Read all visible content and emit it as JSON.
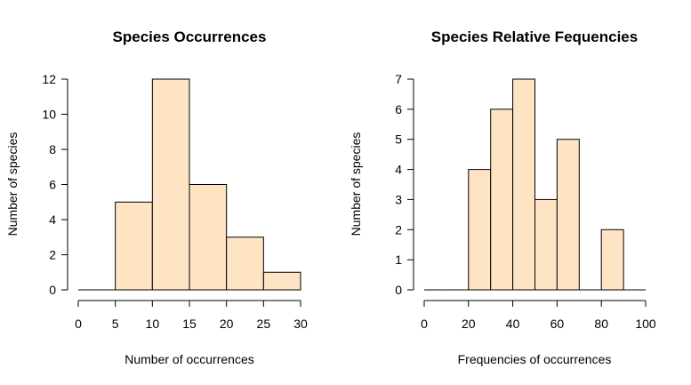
{
  "chart_data": [
    {
      "type": "bar",
      "title": "Species Occurrences",
      "xlabel": "Number of occurrences",
      "ylabel": "Number of species",
      "xlim": [
        0,
        30
      ],
      "ylim": [
        0,
        12
      ],
      "xticks": [
        "0",
        "5",
        "10",
        "15",
        "20",
        "25",
        "30"
      ],
      "yticks": [
        "0",
        "2",
        "4",
        "6",
        "8",
        "10",
        "12"
      ],
      "bins": [
        [
          0,
          5
        ],
        [
          5,
          10
        ],
        [
          10,
          15
        ],
        [
          15,
          20
        ],
        [
          20,
          25
        ],
        [
          25,
          30
        ]
      ],
      "values": [
        0,
        5,
        12,
        6,
        3,
        1
      ],
      "bar_color": "#FFE4C4",
      "grid": false
    },
    {
      "type": "bar",
      "title": "Species Relative Fequencies",
      "xlabel": "Frequencies of occurrences",
      "ylabel": "Number of species",
      "xlim": [
        0,
        100
      ],
      "ylim": [
        0,
        7
      ],
      "xticks": [
        "0",
        "20",
        "40",
        "60",
        "80",
        "100"
      ],
      "yticks": [
        "0",
        "1",
        "2",
        "3",
        "4",
        "5",
        "6",
        "7"
      ],
      "bins": [
        [
          0,
          10
        ],
        [
          10,
          20
        ],
        [
          20,
          30
        ],
        [
          30,
          40
        ],
        [
          40,
          50
        ],
        [
          50,
          60
        ],
        [
          60,
          70
        ],
        [
          70,
          80
        ],
        [
          80,
          90
        ],
        [
          90,
          100
        ]
      ],
      "values": [
        0,
        0,
        4,
        6,
        7,
        3,
        5,
        0,
        2,
        0
      ],
      "bar_color": "#FFE4C4",
      "grid": false
    }
  ]
}
